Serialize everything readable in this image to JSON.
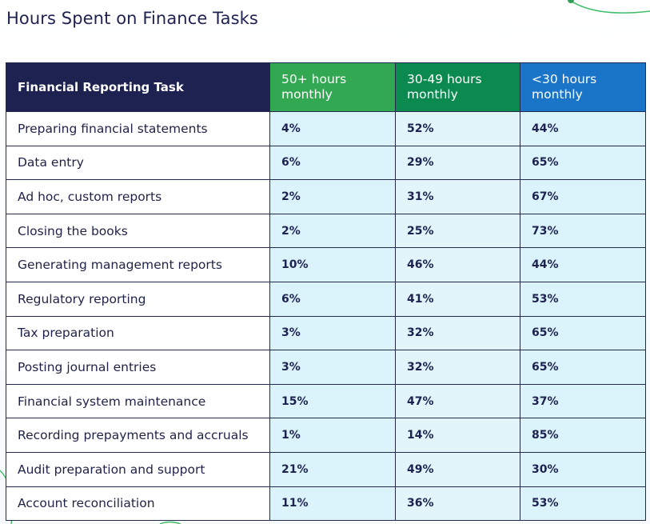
{
  "title": "Hours Spent on Finance Tasks",
  "colors": {
    "title": "#1d2250",
    "header_task": "#1d2250",
    "header_50_plus": "#32a852",
    "header_30_49": "#0b8a4f",
    "header_under_30": "#1a75c9",
    "value_cell": "#dbf4fb",
    "border": "#242a4e",
    "decoration_line": "#3fbd6a"
  },
  "chart_data": {
    "type": "table",
    "title": "Hours Spent on Finance Tasks",
    "columns": [
      "Financial Reporting Task",
      "50+ hours monthly",
      "30-49 hours monthly",
      "<30 hours monthly"
    ],
    "rows": [
      {
        "task": "Preparing financial statements",
        "values": [
          "4%",
          "52%",
          "44%"
        ]
      },
      {
        "task": "Data entry",
        "values": [
          "6%",
          "29%",
          "65%"
        ]
      },
      {
        "task": "Ad hoc, custom reports",
        "values": [
          "2%",
          "31%",
          "67%"
        ]
      },
      {
        "task": "Closing the books",
        "values": [
          "2%",
          "25%",
          "73%"
        ]
      },
      {
        "task": "Generating management reports",
        "values": [
          "10%",
          "46%",
          "44%"
        ]
      },
      {
        "task": "Regulatory reporting",
        "values": [
          "6%",
          "41%",
          "53%"
        ]
      },
      {
        "task": "Tax preparation",
        "values": [
          "3%",
          "32%",
          "65%"
        ]
      },
      {
        "task": "Posting journal entries",
        "values": [
          "3%",
          "32%",
          "65%"
        ]
      },
      {
        "task": "Financial system maintenance",
        "values": [
          "15%",
          "47%",
          "37%"
        ]
      },
      {
        "task": "Recording prepayments and accruals",
        "values": [
          "1%",
          "14%",
          "85%"
        ]
      },
      {
        "task": "Audit preparation and support",
        "values": [
          "21%",
          "49%",
          "30%"
        ]
      },
      {
        "task": "Account reconciliation",
        "values": [
          "11%",
          "36%",
          "53%"
        ]
      }
    ]
  }
}
